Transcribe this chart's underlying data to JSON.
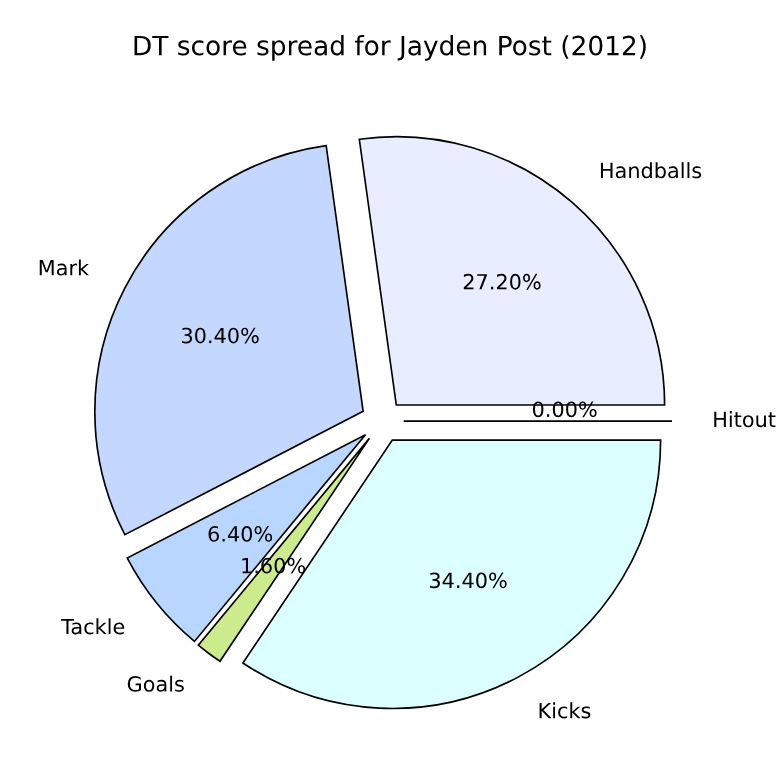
{
  "chart_data": {
    "type": "pie",
    "title": "DT score spread for Jayden Post (2012)",
    "categories": [
      "Handballs",
      "Mark",
      "Tackle",
      "Goals",
      "Kicks",
      "Hitout"
    ],
    "values": [
      27.2,
      30.4,
      6.4,
      1.6,
      34.4,
      0
    ],
    "colors": [
      "#e8eeff",
      "#c4d8ff",
      "#b8d6ff",
      "#cceb8c",
      "#dcffff",
      "#f0f0ff"
    ],
    "value_labels": [
      "27.20%",
      "30.40%",
      "6.40%",
      "1.60%",
      "34.40%",
      "0.00%"
    ],
    "legend": false
  }
}
